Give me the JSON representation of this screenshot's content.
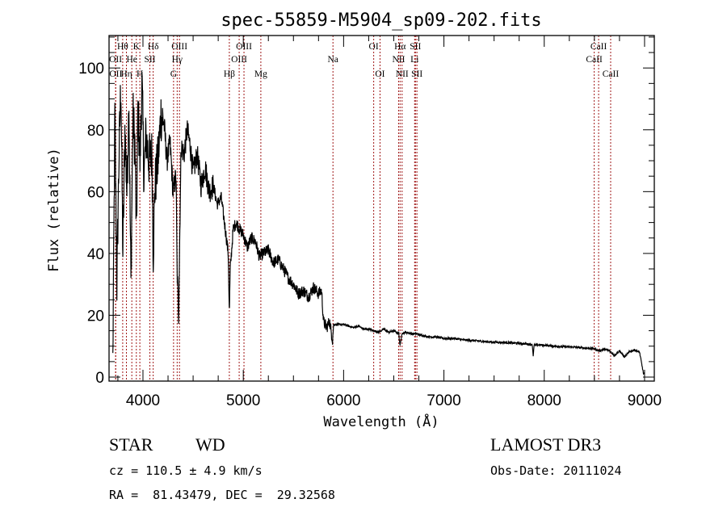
{
  "chart_data": {
    "type": "line",
    "title": "spec-55859-M5904_sp09-202.fits",
    "xlabel": "Wavelength (Å)",
    "ylabel": "Flux (relative)",
    "xlim": [
      3662,
      9097
    ],
    "ylim": [
      -1.3,
      110.5
    ],
    "xticks": [
      4000,
      5000,
      6000,
      7000,
      8000,
      9000
    ],
    "xtick_labels": [
      "4000",
      "5000",
      "6000",
      "7000",
      "8000",
      "9000"
    ],
    "yticks": [
      0,
      20,
      40,
      60,
      80,
      100
    ],
    "ytick_labels": [
      "0",
      "20",
      "40",
      "60",
      "80",
      "100"
    ],
    "x_minor_step": 250,
    "y_minor_step": 5,
    "grid": false,
    "line_color": "#000000",
    "marker_color": "#a01818",
    "series": [
      {
        "name": "flux",
        "x": [
          3700,
          3720,
          3740,
          3760,
          3780,
          3800,
          3820,
          3840,
          3860,
          3880,
          3900,
          3920,
          3935,
          3950,
          3970,
          3990,
          4010,
          4030,
          4060,
          4090,
          4102,
          4120,
          4150,
          4180,
          4210,
          4240,
          4270,
          4300,
          4330,
          4340,
          4355,
          4380,
          4410,
          4440,
          4470,
          4500,
          4540,
          4580,
          4620,
          4660,
          4700,
          4740,
          4780,
          4820,
          4850,
          4861,
          4870,
          4900,
          4930,
          4960,
          5000,
          5040,
          5080,
          5120,
          5160,
          5200,
          5250,
          5300,
          5350,
          5400,
          5450,
          5500,
          5550,
          5600,
          5650,
          5700,
          5750,
          5780,
          5800,
          5830,
          5860,
          5890,
          5900,
          5930,
          5960,
          6000,
          6050,
          6100,
          6150,
          6200,
          6250,
          6300,
          6350,
          6400,
          6450,
          6500,
          6550,
          6563,
          6580,
          6620,
          6680,
          6720,
          6780,
          6850,
          6920,
          7000,
          7100,
          7200,
          7300,
          7400,
          7500,
          7600,
          7700,
          7800,
          7880,
          7890,
          7900,
          7950,
          8000,
          8100,
          8200,
          8300,
          8400,
          8500,
          8542,
          8600,
          8650,
          8700,
          8750,
          8800,
          8850,
          8900,
          8950,
          8990,
          9000
        ],
        "y": [
          5,
          85,
          30,
          70,
          95,
          40,
          80,
          60,
          90,
          30,
          85,
          75,
          45,
          88,
          70,
          95,
          65,
          78,
          70,
          72,
          40,
          62,
          70,
          85,
          82,
          70,
          76,
          60,
          65,
          35,
          20,
          75,
          72,
          80,
          75,
          66,
          72,
          62,
          68,
          60,
          62,
          56,
          58,
          48,
          40,
          20,
          35,
          48,
          50,
          48,
          46,
          42,
          45,
          44,
          39,
          40,
          41,
          37,
          38,
          35,
          32,
          30,
          27,
          28,
          26,
          29,
          27,
          28,
          18,
          16,
          18,
          12,
          17,
          17,
          17,
          17,
          16.5,
          16,
          16.5,
          15.5,
          15.5,
          15,
          14.5,
          15.5,
          14.5,
          15,
          14,
          10,
          14,
          14.5,
          14,
          14,
          13.5,
          13,
          13,
          12.5,
          12.5,
          12,
          11.8,
          11.5,
          11.3,
          11.2,
          11,
          10.8,
          10.5,
          7,
          10.3,
          10.4,
          10.3,
          10,
          9.8,
          9.7,
          9.4,
          9.2,
          8.5,
          9,
          8.5,
          7,
          8.5,
          6.5,
          8.2,
          8.8,
          8,
          1,
          1
        ]
      }
    ],
    "line_markers": [
      {
        "label": "Hθ",
        "wavelength": 3798,
        "row": 1
      },
      {
        "label": "OII",
        "wavelength": 3727,
        "row": 2
      },
      {
        "label": "OII",
        "wavelength": 3729,
        "row": 3
      },
      {
        "label": "He",
        "wavelength": 3889,
        "row": 2
      },
      {
        "label": "Hη",
        "wavelength": 3835,
        "row": 3
      },
      {
        "label": "K",
        "wavelength": 3934,
        "row": 1
      },
      {
        "label": "H",
        "wavelength": 3969,
        "row": 3
      },
      {
        "label": "SII",
        "wavelength": 4069,
        "row": 2
      },
      {
        "label": "Hδ",
        "wavelength": 4102,
        "row": 1
      },
      {
        "label": "OIII",
        "wavelength": 4364,
        "row": 1
      },
      {
        "label": "Hγ",
        "wavelength": 4341,
        "row": 2
      },
      {
        "label": "G",
        "wavelength": 4305,
        "row": 3
      },
      {
        "label": "Hβ",
        "wavelength": 4861,
        "row": 3
      },
      {
        "label": "OIII",
        "wavelength": 5007,
        "row": 1
      },
      {
        "label": "OIII",
        "wavelength": 4959,
        "row": 2
      },
      {
        "label": "Mg",
        "wavelength": 5175,
        "row": 3
      },
      {
        "label": "Na",
        "wavelength": 5894,
        "row": 2
      },
      {
        "label": "OI",
        "wavelength": 6300,
        "row": 1
      },
      {
        "label": "OI",
        "wavelength": 6363,
        "row": 3
      },
      {
        "label": "Hα",
        "wavelength": 6563,
        "row": 1
      },
      {
        "label": "NII",
        "wavelength": 6548,
        "row": 2
      },
      {
        "label": "NII",
        "wavelength": 6583,
        "row": 3
      },
      {
        "label": "SII",
        "wavelength": 6716,
        "row": 1
      },
      {
        "label": "Li",
        "wavelength": 6708,
        "row": 2
      },
      {
        "label": "SII",
        "wavelength": 6731,
        "row": 3
      },
      {
        "label": "CaII",
        "wavelength": 8542,
        "row": 1
      },
      {
        "label": "CaII",
        "wavelength": 8498,
        "row": 2
      },
      {
        "label": "CaII",
        "wavelength": 8662,
        "row": 3
      }
    ]
  },
  "info": {
    "object_class": "STAR",
    "subclass": "WD",
    "redshift_line": "cz = 110.5 ± 4.9 km/s",
    "coords_line": "RA =  81.43479, DEC =  29.32568",
    "survey": "LAMOST DR3",
    "obs_date": "Obs-Date: 20111024"
  }
}
